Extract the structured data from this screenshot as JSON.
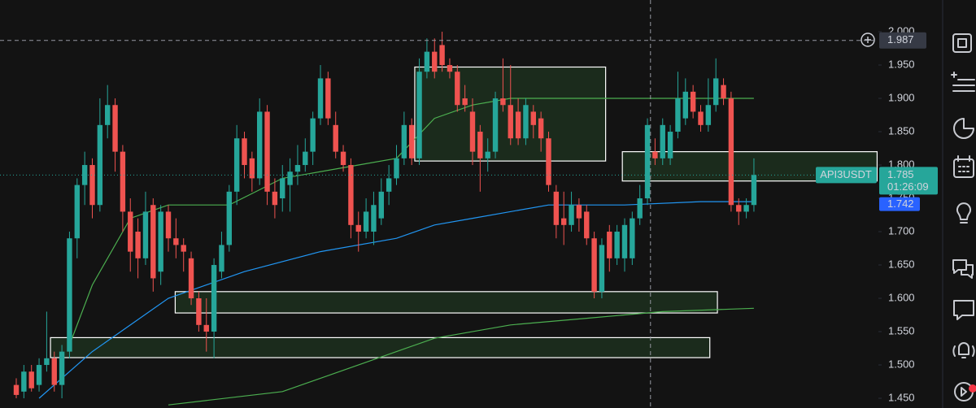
{
  "chart_data": {
    "type": "candlestick",
    "symbol": "API3USDT",
    "countdown": "01:26:09",
    "last_price": {
      "value": 1.785,
      "label": "1.785"
    },
    "ma_price": {
      "value": 1.742,
      "label": "1.742"
    },
    "crosshair": {
      "value": 1.987,
      "label": "1.987",
      "x": 83.4
    },
    "up_color": "#26a69a",
    "down_color": "#ef5350",
    "ylim": [
      1.4354,
      2.0476
    ],
    "xlim": [
      -2.14,
      113.37
    ],
    "yticks": [
      {
        "value": 1.45,
        "label": "1.450"
      },
      {
        "value": 1.5,
        "label": "1.500"
      },
      {
        "value": 1.55,
        "label": "1.550"
      },
      {
        "value": 1.6,
        "label": "1.600"
      },
      {
        "value": 1.65,
        "label": "1.650"
      },
      {
        "value": 1.7,
        "label": "1.700"
      },
      {
        "value": 1.75,
        "label": "1.750"
      },
      {
        "value": 1.8,
        "label": "1.800"
      },
      {
        "value": 1.85,
        "label": "1.850"
      },
      {
        "value": 1.9,
        "label": "1.900"
      },
      {
        "value": 1.95,
        "label": "1.950"
      },
      {
        "value": 2.0,
        "label": "2.000"
      }
    ],
    "ohlc": [
      [
        1.47,
        1.48,
        1.45,
        1.455
      ],
      [
        1.46,
        1.5,
        1.45,
        1.49
      ],
      [
        1.49,
        1.5,
        1.46,
        1.465
      ],
      [
        1.47,
        1.51,
        1.46,
        1.5
      ],
      [
        1.5,
        1.58,
        1.49,
        1.51
      ],
      [
        1.51,
        1.52,
        1.46,
        1.47
      ],
      [
        1.47,
        1.53,
        1.45,
        1.52
      ],
      [
        1.52,
        1.7,
        1.51,
        1.69
      ],
      [
        1.69,
        1.78,
        1.66,
        1.77
      ],
      [
        1.77,
        1.82,
        1.74,
        1.8
      ],
      [
        1.8,
        1.81,
        1.72,
        1.74
      ],
      [
        1.74,
        1.9,
        1.73,
        1.86
      ],
      [
        1.86,
        1.92,
        1.84,
        1.89
      ],
      [
        1.89,
        1.9,
        1.79,
        1.82
      ],
      [
        1.82,
        1.83,
        1.7,
        1.73
      ],
      [
        1.73,
        1.75,
        1.64,
        1.67
      ],
      [
        1.7,
        1.72,
        1.63,
        1.66
      ],
      [
        1.66,
        1.76,
        1.65,
        1.73
      ],
      [
        1.74,
        1.75,
        1.61,
        1.63
      ],
      [
        1.64,
        1.74,
        1.62,
        1.73
      ],
      [
        1.73,
        1.74,
        1.67,
        1.69
      ],
      [
        1.69,
        1.72,
        1.66,
        1.68
      ],
      [
        1.68,
        1.69,
        1.64,
        1.67
      ],
      [
        1.66,
        1.67,
        1.59,
        1.6
      ],
      [
        1.6,
        1.61,
        1.55,
        1.56
      ],
      [
        1.56,
        1.6,
        1.52,
        1.55
      ],
      [
        1.55,
        1.66,
        1.51,
        1.65
      ],
      [
        1.64,
        1.7,
        1.63,
        1.68
      ],
      [
        1.68,
        1.77,
        1.67,
        1.76
      ],
      [
        1.76,
        1.86,
        1.74,
        1.84
      ],
      [
        1.84,
        1.85,
        1.78,
        1.8
      ],
      [
        1.81,
        1.82,
        1.76,
        1.78
      ],
      [
        1.78,
        1.9,
        1.77,
        1.88
      ],
      [
        1.88,
        1.89,
        1.74,
        1.76
      ],
      [
        1.76,
        1.78,
        1.72,
        1.74
      ],
      [
        1.75,
        1.8,
        1.73,
        1.78
      ],
      [
        1.77,
        1.81,
        1.73,
        1.79
      ],
      [
        1.79,
        1.83,
        1.77,
        1.8
      ],
      [
        1.8,
        1.84,
        1.79,
        1.82
      ],
      [
        1.82,
        1.88,
        1.8,
        1.87
      ],
      [
        1.87,
        1.95,
        1.86,
        1.93
      ],
      [
        1.93,
        1.94,
        1.86,
        1.87
      ],
      [
        1.86,
        1.88,
        1.81,
        1.82
      ],
      [
        1.82,
        1.83,
        1.79,
        1.8
      ],
      [
        1.8,
        1.81,
        1.69,
        1.71
      ],
      [
        1.71,
        1.73,
        1.67,
        1.7
      ],
      [
        1.7,
        1.75,
        1.69,
        1.73
      ],
      [
        1.7,
        1.76,
        1.68,
        1.74
      ],
      [
        1.72,
        1.78,
        1.71,
        1.76
      ],
      [
        1.76,
        1.8,
        1.74,
        1.78
      ],
      [
        1.78,
        1.83,
        1.77,
        1.81
      ],
      [
        1.81,
        1.88,
        1.8,
        1.86
      ],
      [
        1.86,
        1.87,
        1.8,
        1.81
      ],
      [
        1.81,
        1.96,
        1.8,
        1.94
      ],
      [
        1.94,
        1.99,
        1.93,
        1.97
      ],
      [
        1.97,
        1.99,
        1.93,
        1.94
      ],
      [
        1.98,
        2.0,
        1.94,
        1.95
      ],
      [
        1.95,
        1.96,
        1.93,
        1.94
      ],
      [
        1.94,
        1.95,
        1.88,
        1.89
      ],
      [
        1.9,
        1.92,
        1.88,
        1.89
      ],
      [
        1.88,
        1.9,
        1.8,
        1.82
      ],
      [
        1.85,
        1.86,
        1.76,
        1.81
      ],
      [
        1.81,
        1.84,
        1.79,
        1.82
      ],
      [
        1.82,
        1.91,
        1.81,
        1.9
      ],
      [
        1.9,
        1.96,
        1.88,
        1.89
      ],
      [
        1.89,
        1.95,
        1.83,
        1.84
      ],
      [
        1.88,
        1.9,
        1.83,
        1.84
      ],
      [
        1.84,
        1.9,
        1.83,
        1.89
      ],
      [
        1.88,
        1.89,
        1.84,
        1.86
      ],
      [
        1.87,
        1.88,
        1.82,
        1.84
      ],
      [
        1.84,
        1.85,
        1.76,
        1.77
      ],
      [
        1.76,
        1.77,
        1.69,
        1.71
      ],
      [
        1.72,
        1.76,
        1.68,
        1.71
      ],
      [
        1.71,
        1.76,
        1.7,
        1.74
      ],
      [
        1.74,
        1.75,
        1.7,
        1.72
      ],
      [
        1.73,
        1.74,
        1.68,
        1.69
      ],
      [
        1.69,
        1.7,
        1.6,
        1.61
      ],
      [
        1.61,
        1.69,
        1.6,
        1.68
      ],
      [
        1.7,
        1.71,
        1.64,
        1.66
      ],
      [
        1.66,
        1.71,
        1.65,
        1.7
      ],
      [
        1.66,
        1.72,
        1.64,
        1.71
      ],
      [
        1.66,
        1.73,
        1.65,
        1.72
      ],
      [
        1.72,
        1.77,
        1.71,
        1.75
      ],
      [
        1.75,
        1.87,
        1.74,
        1.86
      ],
      [
        1.82,
        1.84,
        1.8,
        1.81
      ],
      [
        1.81,
        1.87,
        1.8,
        1.86
      ],
      [
        1.81,
        1.86,
        1.8,
        1.85
      ],
      [
        1.85,
        1.94,
        1.84,
        1.9
      ],
      [
        1.87,
        1.93,
        1.86,
        1.91
      ],
      [
        1.91,
        1.92,
        1.87,
        1.88
      ],
      [
        1.88,
        1.89,
        1.85,
        1.86
      ],
      [
        1.86,
        1.93,
        1.85,
        1.89
      ],
      [
        1.89,
        1.96,
        1.88,
        1.93
      ],
      [
        1.92,
        1.93,
        1.89,
        1.9
      ],
      [
        1.9,
        1.91,
        1.73,
        1.74
      ],
      [
        1.74,
        1.75,
        1.71,
        1.73
      ],
      [
        1.73,
        1.75,
        1.72,
        1.74
      ],
      [
        1.74,
        1.81,
        1.73,
        1.785
      ]
    ],
    "lines": [
      {
        "color": "#4caf50",
        "x": [
          7,
          10,
          15,
          20,
          28,
          35,
          45,
          50,
          55,
          60,
          65,
          75,
          85,
          97
        ],
        "values": [
          1.53,
          1.62,
          1.72,
          1.74,
          1.74,
          1.78,
          1.8,
          1.81,
          1.87,
          1.89,
          1.9,
          1.9,
          1.9,
          1.9
        ]
      },
      {
        "color": "#2196f3",
        "x": [
          3,
          10,
          20,
          30,
          40,
          50,
          55,
          60,
          70,
          80,
          90,
          97
        ],
        "values": [
          1.45,
          1.52,
          1.6,
          1.64,
          1.67,
          1.69,
          1.71,
          1.72,
          1.74,
          1.74,
          1.745,
          1.745
        ]
      },
      {
        "color": "#4caf50",
        "x": [
          20,
          35,
          50,
          55,
          65,
          75,
          85,
          97
        ],
        "values": [
          1.44,
          1.46,
          1.52,
          1.54,
          1.56,
          1.57,
          1.58,
          1.585
        ]
      }
    ],
    "zones": [
      {
        "x": [
          52.4,
          77.5
        ],
        "y": [
          1.806,
          1.947
        ]
      },
      {
        "x": [
          79.7,
          113.2
        ],
        "y": [
          1.776,
          1.82
        ]
      },
      {
        "x": [
          20.9,
          92.2
        ],
        "y": [
          1.578,
          1.61
        ]
      },
      {
        "x": [
          4.5,
          91.2
        ],
        "y": [
          1.511,
          1.541
        ]
      }
    ]
  }
}
